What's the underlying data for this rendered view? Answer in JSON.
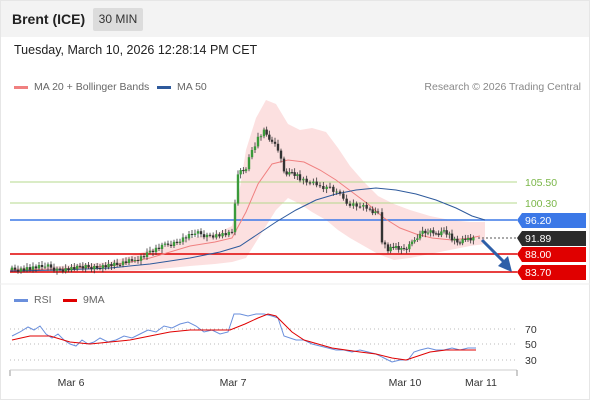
{
  "header": {
    "instrument": "Brent (ICE)",
    "timeframe": "30 MIN"
  },
  "timestamp": "Tuesday, March 10, 2026 12:28:14 PM CET",
  "legend": [
    {
      "label": "MA 20 + Bollinger Bands",
      "color": "#f08080"
    },
    {
      "label": "MA 50",
      "color": "#2e5a9c"
    }
  ],
  "credit": "Research © 2026 Trading Central",
  "levels": [
    {
      "value": "105.50",
      "kind": "green",
      "color": "#a6cf7c"
    },
    {
      "value": "100.30",
      "kind": "green",
      "color": "#a6cf7c"
    },
    {
      "value": "96.20",
      "kind": "pivot",
      "color": "#3b78e7"
    },
    {
      "value": "91.89",
      "kind": "last",
      "color": "#2b2b2b"
    },
    {
      "value": "88.00",
      "kind": "red",
      "color": "#e00000"
    },
    {
      "value": "83.70",
      "kind": "red",
      "color": "#e00000"
    }
  ],
  "rsi_legend": [
    {
      "label": "RSI",
      "color": "#6a8fdc"
    },
    {
      "label": "9MA",
      "color": "#e00000"
    }
  ],
  "rsi_levels": [
    "70",
    "50",
    "30"
  ],
  "x_labels": [
    "Mar 6",
    "Mar 7",
    "Mar 10",
    "Mar 11"
  ]
}
